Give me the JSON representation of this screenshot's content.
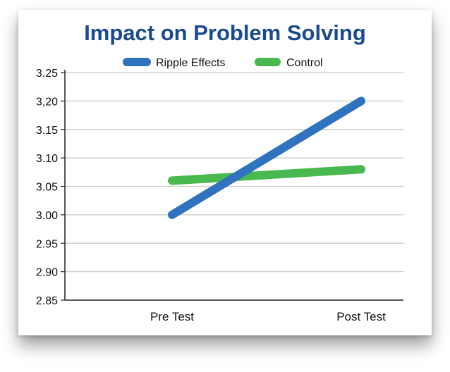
{
  "colors": {
    "title": "#1a4a8f",
    "ripple": "#2f72bd",
    "control": "#48b84f",
    "grid": "#c9c9c9",
    "axis": "#222222"
  },
  "chart_data": {
    "type": "line",
    "title": "Impact on Problem Solving",
    "categories": [
      "Pre Test",
      "Post Test"
    ],
    "series": [
      {
        "name": "Ripple Effects",
        "values": [
          3.0,
          3.2
        ]
      },
      {
        "name": "Control",
        "values": [
          3.06,
          3.08
        ]
      }
    ],
    "yticks": [
      "2.85",
      "2.90",
      "2.95",
      "3.00",
      "3.05",
      "3.10",
      "3.15",
      "3,20",
      "3.25"
    ],
    "ylim": [
      2.85,
      3.25
    ],
    "grid": true,
    "legend": "top-center",
    "xlabel": "",
    "ylabel": ""
  }
}
